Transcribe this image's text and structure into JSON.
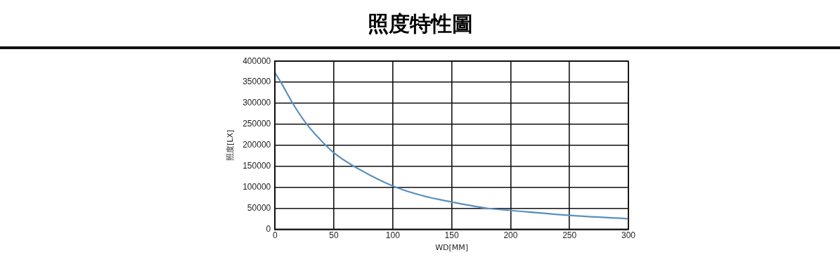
{
  "chart_data": {
    "type": "line",
    "title": "照度特性圖",
    "xlabel": "WD[MM]",
    "ylabel": "照度[LX]",
    "x": [
      0,
      5,
      15,
      27,
      43,
      50,
      67,
      100,
      125,
      150,
      180,
      200,
      250,
      300
    ],
    "series": [
      {
        "color": "#5b8fc0",
        "values": [
          372000,
          350000,
          300000,
          250000,
          200000,
          182000,
          150000,
          103000,
          80000,
          65000,
          50000,
          45000,
          33000,
          25000
        ]
      }
    ],
    "xlim": [
      0,
      300
    ],
    "xticks": [
      0,
      50,
      100,
      150,
      200,
      250,
      300
    ],
    "ylim": [
      0,
      400000
    ],
    "yticks": [
      0,
      50000,
      100000,
      150000,
      200000,
      250000,
      300000,
      350000,
      400000
    ],
    "grid": true,
    "legend": false,
    "marker": "none",
    "line_style": "solid"
  }
}
